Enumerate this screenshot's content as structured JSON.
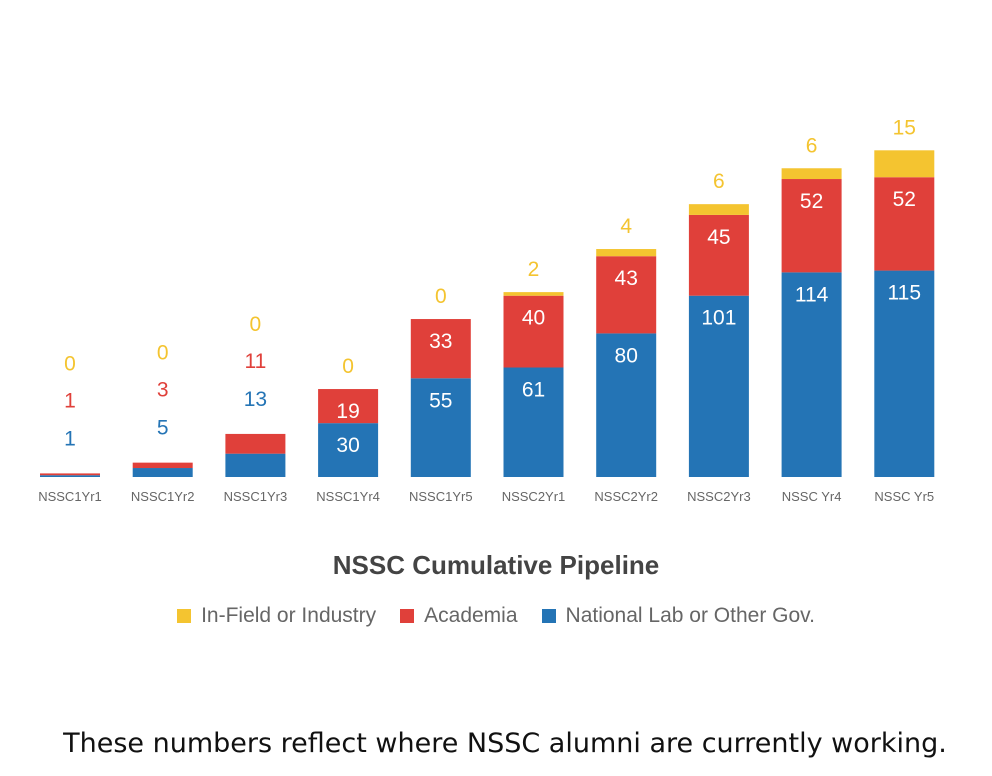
{
  "chart_data": {
    "type": "bar",
    "stacked": true,
    "title": "NSSC Cumulative Pipeline",
    "categories": [
      "NSSC1Yr1",
      "NSSC1Yr2",
      "NSSC1Yr3",
      "NSSC1Yr4",
      "NSSC1Yr5",
      "NSSC2Yr1",
      "NSSC2Yr2",
      "NSSC2Yr3",
      "NSSC Yr4",
      "NSSC Yr5"
    ],
    "series": [
      {
        "name": "National Lab or Other Gov.",
        "color": "#2474b5",
        "values": [
          1,
          5,
          13,
          30,
          55,
          61,
          80,
          101,
          114,
          115
        ]
      },
      {
        "name": "Academia",
        "color": "#e0403a",
        "values": [
          1,
          3,
          11,
          19,
          33,
          40,
          43,
          45,
          52,
          52
        ]
      },
      {
        "name": "In-Field or Industry",
        "color": "#f4c430",
        "values": [
          0,
          0,
          0,
          0,
          0,
          2,
          4,
          6,
          6,
          15
        ]
      }
    ],
    "ylim": [
      0,
      180
    ],
    "grid": false,
    "legend_position": "bottom"
  },
  "legend": [
    {
      "label": "In-Field or Industry",
      "color": "#f4c430"
    },
    {
      "label": "Academia",
      "color": "#e0403a"
    },
    {
      "label": "National Lab or Other Gov.",
      "color": "#2474b5"
    }
  ],
  "caption": "These numbers reflect where NSSC alumni are currently working."
}
